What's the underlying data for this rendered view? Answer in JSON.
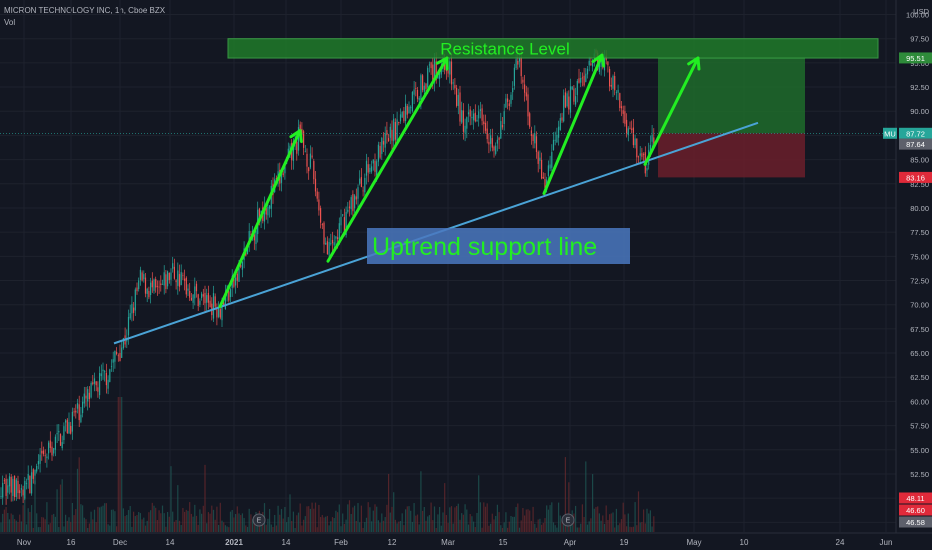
{
  "header": {
    "symbol_line": "MICRON TECHNOLOGY INC, 1h, Cboe BZX",
    "volume_label": "Vol"
  },
  "colors": {
    "background": "#131722",
    "up": "#26a69a",
    "down": "#ef5350",
    "trendline": "#4aa3d6",
    "arrow": "#22ee22",
    "resistance_fill": "#1f7a2a",
    "profit_zone": "#1e6b2a",
    "loss_zone": "#6b1f2a",
    "annotation_box": "#4a78c0"
  },
  "chart_data": {
    "type": "candlestick",
    "title": "MICRON TECHNOLOGY INC, 1h, Cboe BZX",
    "currency": "USD",
    "y_axis": {
      "min": 46.5,
      "max": 101.5,
      "ticks": [
        47.5,
        50.0,
        52.5,
        55.0,
        57.5,
        60.0,
        62.5,
        65.0,
        67.5,
        70.0,
        72.5,
        75.0,
        77.5,
        80.0,
        82.5,
        85.0,
        87.5,
        90.0,
        92.5,
        95.0,
        97.5,
        100.0
      ],
      "tick_labels": [
        "47.50",
        "50.00",
        "52.50",
        "55.00",
        "57.50",
        "60.00",
        "62.50",
        "65.00",
        "67.50",
        "70.00",
        "72.50",
        "75.00",
        "77.50",
        "80.00",
        "82.50",
        "85.00",
        "87.50",
        "90.00",
        "92.50",
        "95.00",
        "97.50",
        "100.00"
      ],
      "unit_label": "USD"
    },
    "x_axis": {
      "labels": [
        "Nov",
        "16",
        "Dec",
        "14",
        "2021",
        "14",
        "Feb",
        "12",
        "Mar",
        "15",
        "Apr",
        "19",
        "May",
        "10",
        "24",
        "Jun"
      ],
      "bold_labels": [
        "2021"
      ]
    },
    "price_path": [
      [
        "Nov",
        51.5
      ],
      [
        "Nov+",
        50.5
      ],
      [
        "16",
        55.0
      ],
      [
        "16+",
        59.0
      ],
      [
        "Dec-",
        63.0
      ],
      [
        "Dec",
        66.5
      ],
      [
        "Dec+",
        72.5
      ],
      [
        "14-",
        71.0
      ],
      [
        "14",
        73.5
      ],
      [
        "14+",
        71.0
      ],
      [
        "2021-",
        69.8
      ],
      [
        "2021",
        72.5
      ],
      [
        "2021+",
        79.0
      ],
      [
        "14-",
        83.0
      ],
      [
        "14",
        87.5
      ],
      [
        "14+",
        84.0
      ],
      [
        "Feb-",
        75.0
      ],
      [
        "Feb",
        79.0
      ],
      [
        "Feb+",
        84.0
      ],
      [
        "12-",
        86.5
      ],
      [
        "12",
        90.0
      ],
      [
        "12+",
        93.5
      ],
      [
        "Mar-",
        95.0
      ],
      [
        "Mar",
        88.0
      ],
      [
        "Mar+",
        91.0
      ],
      [
        "15-",
        85.5
      ],
      [
        "15",
        90.0
      ],
      [
        "15+",
        95.0
      ],
      [
        "Apr-",
        82.0
      ],
      [
        "Apr",
        90.0
      ],
      [
        "Apr+",
        96.0
      ],
      [
        "19-",
        91.0
      ],
      [
        "19",
        84.2
      ],
      [
        "19+",
        87.7
      ]
    ],
    "volume": {
      "level_labels": [
        "48.11",
        "46.60",
        "46.58"
      ]
    },
    "price_tags": [
      {
        "label": "95.51",
        "value": 95.51,
        "color": "#2e8b3a"
      },
      {
        "label": "MU",
        "value": 87.72,
        "color": "#26a69a"
      },
      {
        "label": "87.72",
        "value": 87.72,
        "color": "#26a69a"
      },
      {
        "label": "87.64",
        "value": 86.6,
        "color": "#5d606b"
      },
      {
        "label": "83.16",
        "value": 83.16,
        "color": "#e02a3a"
      }
    ],
    "annotations": {
      "resistance": {
        "label": "Resistance Level",
        "low": 95.5,
        "high": 97.5
      },
      "uptrend_support": {
        "label": "Uptrend support line",
        "from": [
          "Dec-",
          66.0
        ],
        "to": [
          "May+",
          88.8
        ]
      },
      "risk_reward": {
        "entry": 87.72,
        "target": 95.51,
        "stop": 83.16,
        "from": "19-",
        "to": "May+"
      },
      "arrows": [
        {
          "from": [
            "2021-",
            69.8
          ],
          "to": [
            "14",
            88.0
          ]
        },
        {
          "from": [
            "Feb-",
            74.5
          ],
          "to": [
            "Mar-",
            95.5
          ]
        },
        {
          "from": [
            "Apr-",
            81.5
          ],
          "to": [
            "Apr+",
            95.8
          ]
        },
        {
          "from": [
            "19",
            84.5
          ],
          "to": [
            "May-",
            95.5
          ]
        }
      ]
    }
  }
}
